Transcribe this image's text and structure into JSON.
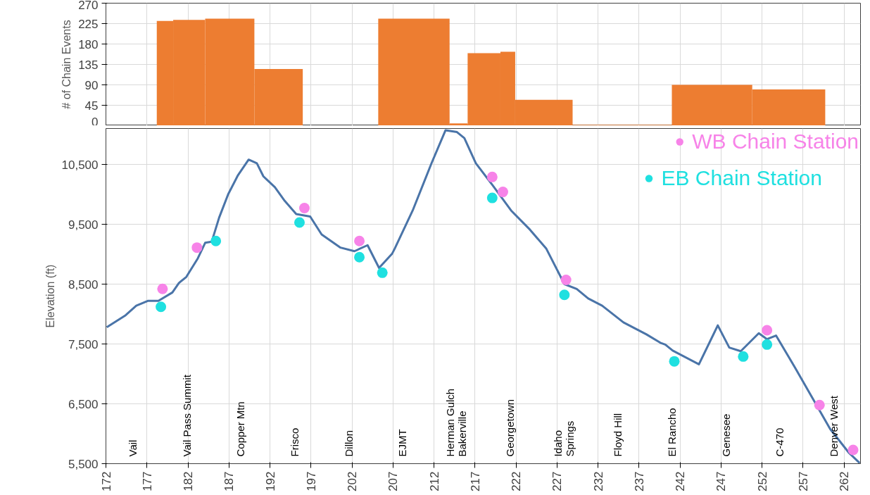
{
  "chart_data": [
    {
      "type": "histogram",
      "ylabel": "# of Chain Events",
      "color": "#ed7d31",
      "bins": [
        178.2,
        180.2,
        184.1,
        190.1,
        196.0,
        205.2,
        213.9,
        216.1,
        220.1,
        221.9,
        228.9,
        241.0,
        250.8,
        259.7
      ],
      "values": [
        231,
        233,
        236,
        125,
        0,
        236,
        5,
        160,
        163,
        57,
        2,
        90,
        80
      ],
      "xlim": [
        172,
        264
      ],
      "xticks": [
        172,
        177,
        182,
        187,
        192,
        197,
        202,
        207,
        212,
        217,
        222,
        227,
        232,
        237,
        242,
        247,
        252,
        257,
        262
      ],
      "ylim": [
        0,
        270
      ],
      "yticks": [
        0,
        45,
        90,
        135,
        180,
        225,
        270
      ],
      "tick_labels": "y",
      "grid": true
    },
    {
      "type": "line",
      "ylabel": "Elevation (ft)",
      "legend": "top right",
      "grid": true,
      "xlim": [
        172,
        264
      ],
      "xticks": [
        172,
        177,
        182,
        187,
        192,
        197,
        202,
        207,
        212,
        217,
        222,
        227,
        232,
        237,
        242,
        247,
        252,
        257,
        262
      ],
      "ylim": [
        5500,
        11100
      ],
      "yticks": [
        {
          "value": 5500,
          "label": "5,500"
        },
        {
          "value": 6500,
          "label": "6,500"
        },
        {
          "value": 7500,
          "label": "7,500"
        },
        {
          "value": 8500,
          "label": "8,500"
        },
        {
          "value": 9500,
          "label": "9,500"
        },
        {
          "value": 10500,
          "label": "10,500"
        }
      ],
      "series": [
        {
          "type": "line",
          "color": "#4a74a8",
          "x": [
            172.1,
            174.4,
            175.7,
            177.1,
            178.4,
            180.1,
            180.9,
            181.8,
            183.2,
            184.1,
            184.9,
            185.8,
            186.9,
            188.1,
            189.4,
            190.4,
            191.2,
            192.6,
            193.8,
            195.2,
            196.9,
            198.3,
            200.6,
            202.3,
            203.9,
            205.3,
            206.9,
            207.2,
            209.4,
            211.7,
            213.4,
            214.8,
            215.7,
            217.1,
            219.1,
            221.4,
            223.7,
            225.7,
            227.9,
            229.4,
            230.8,
            232.5,
            235.1,
            237.9,
            239.6,
            240.2,
            241.1,
            244.3,
            246.6,
            248.0,
            249.4,
            251.6,
            252.6,
            253.7,
            256.0,
            258.3,
            260.3,
            262.6,
            263.9
          ],
          "values": [
            7780,
            7980,
            8140,
            8220,
            8220,
            8360,
            8520,
            8620,
            8930,
            9190,
            9210,
            9610,
            10000,
            10320,
            10580,
            10520,
            10300,
            10120,
            9890,
            9670,
            9630,
            9330,
            9110,
            9050,
            9150,
            8770,
            9010,
            9090,
            9730,
            10520,
            11070,
            11040,
            10940,
            10520,
            10160,
            9730,
            9410,
            9090,
            8500,
            8420,
            8260,
            8140,
            7860,
            7660,
            7520,
            7490,
            7390,
            7160,
            7810,
            7440,
            7380,
            7680,
            7580,
            7640,
            7110,
            6560,
            6080,
            5680,
            5510
          ]
        },
        {
          "type": "scatter",
          "name": "WB Chain Station",
          "color": "#f783e8",
          "marker": "circle",
          "x": [
            178.9,
            183.1,
            196.2,
            202.9,
            219.1,
            220.4,
            228.1,
            252.6,
            259.0,
            263.1
          ],
          "values": [
            8420,
            9110,
            9770,
            9220,
            10290,
            10040,
            8570,
            7730,
            6480,
            5730
          ]
        },
        {
          "type": "scatter",
          "name": "EB Chain Station",
          "color": "#1fe0e0",
          "marker": "circle",
          "x": [
            178.7,
            185.4,
            195.6,
            202.9,
            205.7,
            219.1,
            227.9,
            241.3,
            249.7,
            252.6
          ],
          "values": [
            8120,
            9220,
            9530,
            8950,
            8690,
            9940,
            8320,
            7210,
            7290,
            7490
          ]
        }
      ],
      "annotations": [
        "Vail",
        "Vail Pass Summit",
        "Copper Mtn",
        "Frisco",
        "Dillon",
        "EJMT",
        "Herman Gulch\nBakerville",
        "Georgetown",
        "Idaho\nSprings",
        "Floyd Hill",
        "El Rancho",
        "Genesee",
        "C-470",
        "Denver West"
      ]
    }
  ]
}
